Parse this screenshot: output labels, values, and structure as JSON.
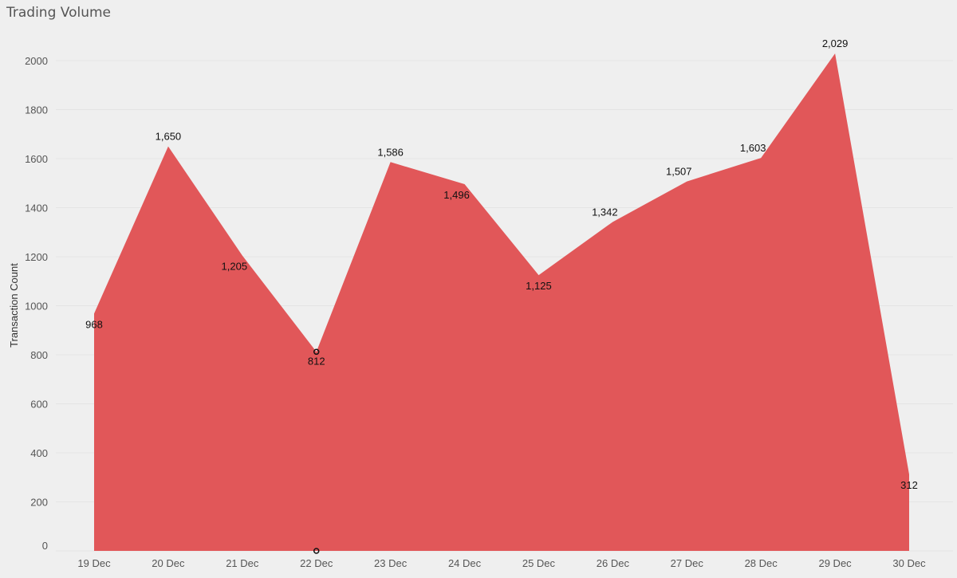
{
  "chart_data": {
    "type": "area",
    "title": "Trading Volume",
    "xlabel": "",
    "ylabel": "Transaction Count",
    "categories": [
      "19 Dec",
      "20 Dec",
      "21 Dec",
      "22 Dec",
      "23 Dec",
      "24 Dec",
      "25 Dec",
      "26 Dec",
      "27 Dec",
      "28 Dec",
      "29 Dec",
      "30 Dec"
    ],
    "series": [
      {
        "values": [
          968,
          1650,
          1205,
          812,
          1586,
          1496,
          1125,
          1342,
          1507,
          1603,
          2029,
          312
        ],
        "data_labels": [
          "968",
          "1,650",
          "1,205",
          "812",
          "1,586",
          "1,496",
          "1,125",
          "1,342",
          "1,507",
          "1,603",
          "2,029",
          "312"
        ],
        "color": "#e15759"
      }
    ],
    "yticks": [
      0,
      200,
      400,
      600,
      800,
      1000,
      1200,
      1400,
      1600,
      1800,
      2000
    ],
    "ylim": [
      0,
      2100
    ],
    "grid": true,
    "legend": "none",
    "highlighted_category": "22 Dec"
  }
}
